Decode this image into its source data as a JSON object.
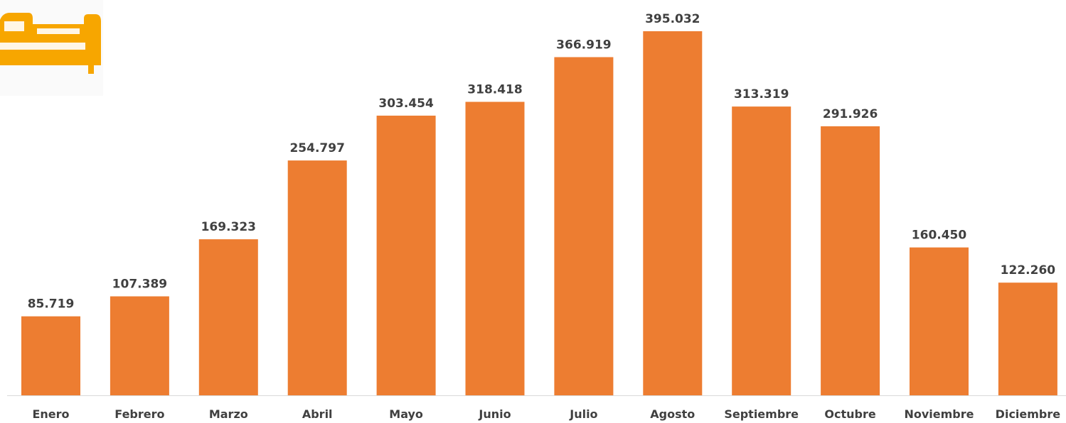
{
  "chart_data": {
    "type": "bar",
    "categories": [
      "Enero",
      "Febrero",
      "Marzo",
      "Abril",
      "Mayo",
      "Junio",
      "Julio",
      "Agosto",
      "Septiembre",
      "Octubre",
      "Noviembre",
      "Diciembre"
    ],
    "values": [
      85719,
      107389,
      169323,
      254797,
      303454,
      318418,
      366919,
      395032,
      313319,
      291926,
      160450,
      122260
    ],
    "value_labels": [
      "85.719",
      "107.389",
      "169.323",
      "254.797",
      "303.454",
      "318.418",
      "366.919",
      "395.032",
      "313.319",
      "291.926",
      "160.450",
      "122.260"
    ],
    "color": "#ED7D31"
  }
}
